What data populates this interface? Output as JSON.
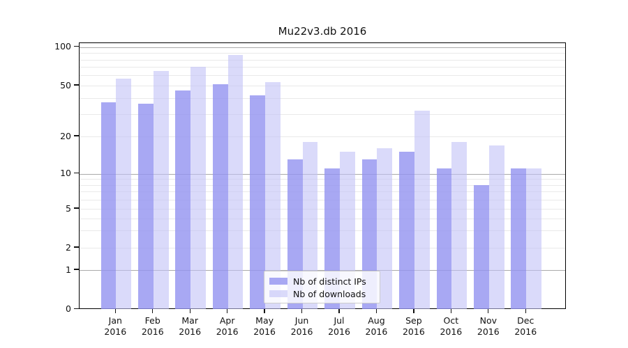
{
  "title": "Mu22v3.db 2016",
  "chart_data": {
    "type": "bar",
    "categories": [
      "Jan 2016",
      "Feb 2016",
      "Mar 2016",
      "Apr 2016",
      "May 2016",
      "Jun 2016",
      "Jul 2016",
      "Aug 2016",
      "Sep 2016",
      "Oct 2016",
      "Nov 2016",
      "Dec 2016"
    ],
    "series": [
      {
        "name": "Nb of distinct IPs",
        "color": "rgba(146,146,240,0.8)",
        "values": [
          37,
          36,
          46,
          51,
          42,
          13,
          11,
          13,
          15,
          11,
          8,
          11
        ]
      },
      {
        "name": "Nb of downloads",
        "color": "rgba(193,193,247,0.6)",
        "values": [
          57,
          65,
          70,
          87,
          53,
          18,
          15,
          16,
          32,
          18,
          17,
          11
        ]
      }
    ],
    "title": "Mu22v3.db 2016",
    "xlabel": "",
    "ylabel": "",
    "yticks": [
      0,
      1,
      2,
      5,
      10,
      20,
      50,
      100
    ],
    "ylim": [
      0,
      108
    ],
    "yscale": "log-like with 0 baseline (ticks 0,1,2,5,10,20,50,100)",
    "grid": true,
    "legend_position": "lower center"
  },
  "legend": {
    "items": [
      {
        "label": "Nb of distinct IPs"
      },
      {
        "label": "Nb of downloads"
      }
    ]
  },
  "colors": {
    "bar_distinct_ips": "rgba(146,146,240,0.8)",
    "bar_downloads": "rgba(193,193,247,0.6)",
    "grid_major": "#a9a9a9",
    "grid_minor": "#e9e9e9",
    "spine": "#000000",
    "text": "#111111",
    "legend_border": "#cccccc",
    "legend_bg": "rgba(255,255,255,0.8)"
  }
}
